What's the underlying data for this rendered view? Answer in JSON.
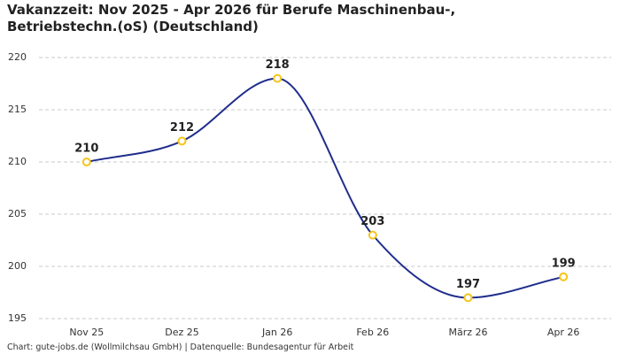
{
  "chart_data": {
    "type": "line",
    "title": "Vakanzzeit: Nov 2025 - Apr 2026 für Berufe Maschinenbau-, Betriebstechn.(oS) (Deutschland)",
    "source": "Chart: gute-jobs.de (Wollmilchsau GmbH) | Datenquelle: Bundesagentur für Arbeit",
    "categories": [
      "Nov 25",
      "Dez 25",
      "Jan 26",
      "Feb 26",
      "März 26",
      "Apr 26"
    ],
    "values": [
      210,
      212,
      218,
      203,
      197,
      199
    ],
    "color": "#1f2d8c",
    "marker_color": "#f5c518",
    "ylim": [
      195,
      220
    ],
    "yticks": [
      195,
      200,
      205,
      210,
      215,
      220
    ],
    "grid": true
  }
}
